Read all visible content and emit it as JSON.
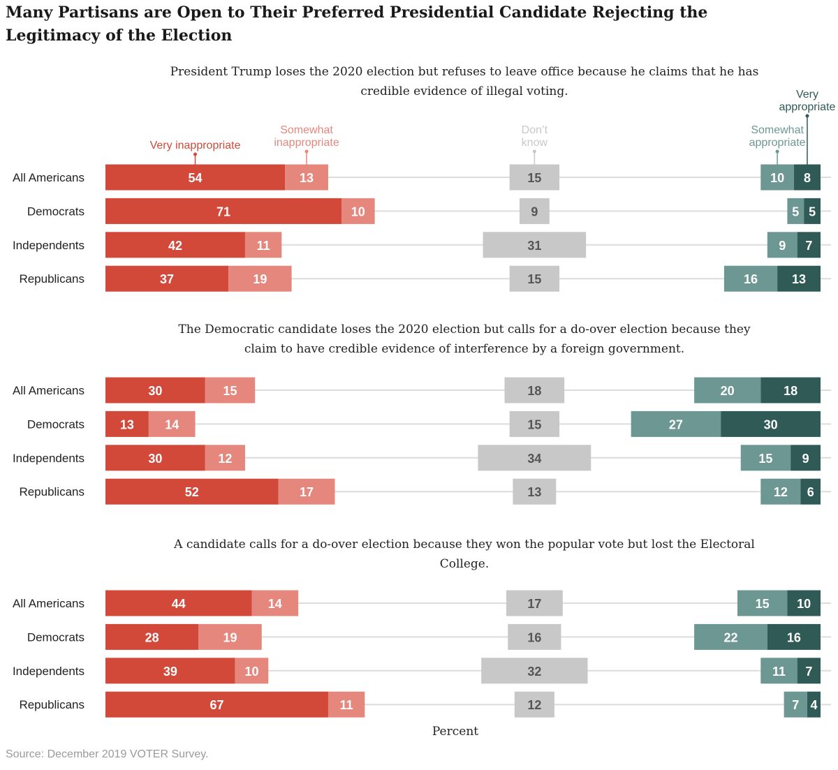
{
  "title": "Many Partisans are Open to Their Preferred Presidential Candidate Rejecting the Legitimacy of the Election",
  "source": "Source: December 2019 VOTER Survey.",
  "chart_data": {
    "type": "bar",
    "orientation": "horizontal",
    "stacked": "diverging, separated by response",
    "xlabel": "Percent",
    "groups": [
      "All Americans",
      "Democrats",
      "Independents",
      "Republicans"
    ],
    "responses": [
      {
        "key": "vi",
        "legend": [
          "Very inappropriate"
        ],
        "color": "#d2493a",
        "text_color": "#ffffff"
      },
      {
        "key": "si",
        "legend": [
          "Somewhat",
          "inappropriate"
        ],
        "color": "#e5877d",
        "text_color": "#ffffff"
      },
      {
        "key": "dk",
        "legend": [
          "Don’t",
          "know"
        ],
        "color": "#c8c8c8",
        "text_color": "#555555"
      },
      {
        "key": "sa",
        "legend": [
          "Somewhat",
          "appropriate"
        ],
        "color": "#6d9793",
        "text_color": "#ffffff"
      },
      {
        "key": "va",
        "legend": [
          "Very",
          "appropriate"
        ],
        "color": "#2f5a55",
        "text_color": "#ffffff"
      }
    ],
    "legend_placement": "above first panel",
    "panels": [
      {
        "question": "President Trump loses the 2020 election but refuses to leave office because he claims that he has credible evidence of illegal voting.",
        "rows": [
          {
            "group": "All Americans",
            "values": [
              54,
              13,
              15,
              10,
              8
            ]
          },
          {
            "group": "Democrats",
            "values": [
              71,
              10,
              9,
              5,
              5
            ]
          },
          {
            "group": "Independents",
            "values": [
              42,
              11,
              31,
              9,
              7
            ]
          },
          {
            "group": "Republicans",
            "values": [
              37,
              19,
              15,
              16,
              13
            ]
          }
        ]
      },
      {
        "question": "The Democratic candidate loses the 2020 election but calls for a do-over election because they claim to have credible evidence of interference by a foreign government.",
        "rows": [
          {
            "group": "All Americans",
            "values": [
              30,
              15,
              18,
              20,
              18
            ]
          },
          {
            "group": "Democrats",
            "values": [
              13,
              14,
              15,
              27,
              30
            ]
          },
          {
            "group": "Independents",
            "values": [
              30,
              12,
              34,
              15,
              9
            ]
          },
          {
            "group": "Republicans",
            "values": [
              52,
              17,
              13,
              12,
              6
            ]
          }
        ]
      },
      {
        "question": "A candidate calls for a do-over election because they won the popular vote but lost the Electoral College.",
        "rows": [
          {
            "group": "All Americans",
            "values": [
              44,
              14,
              17,
              15,
              10
            ]
          },
          {
            "group": "Democrats",
            "values": [
              28,
              19,
              16,
              22,
              16
            ]
          },
          {
            "group": "Independents",
            "values": [
              39,
              10,
              32,
              11,
              7
            ]
          },
          {
            "group": "Republicans",
            "values": [
              67,
              11,
              12,
              7,
              4
            ]
          }
        ]
      }
    ]
  }
}
